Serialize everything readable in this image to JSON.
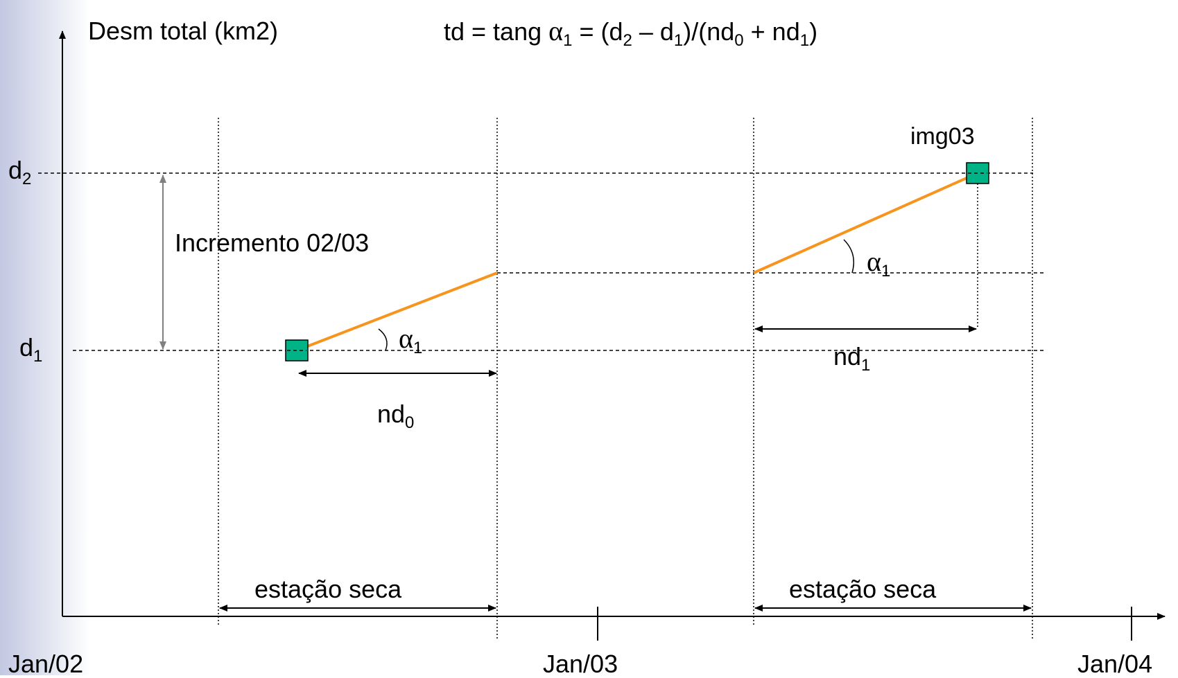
{
  "y_axis_label": "Desm total (km2)",
  "formula": {
    "lhs": "td = tang ",
    "alpha": "α",
    "alpha_sub": "1",
    "eq": " = (d",
    "d2_sub": "2",
    "minus": " – d",
    "d1_sub": "1",
    "mid": ")/(nd",
    "nd0_sub": "0",
    "plus": " + nd",
    "nd1_sub": "1",
    "close": ")"
  },
  "levels": {
    "d2": {
      "base": "d",
      "sub": "2"
    },
    "d1": {
      "base": "d",
      "sub": "1"
    }
  },
  "increment_label": "Incremento 02/03",
  "img_label": "img03",
  "angle_labels": {
    "base": "α",
    "sub": "1"
  },
  "interval_labels": {
    "nd0": {
      "base": "nd",
      "sub": "0"
    },
    "nd1": {
      "base": "nd",
      "sub": "1"
    }
  },
  "season_labels": [
    "estação seca",
    "estação seca"
  ],
  "x_ticks": [
    "Jan/02",
    "Jan/03",
    "Jan/04"
  ],
  "colors": {
    "trend_line": "#f7941d",
    "marker_fill": "#00b386",
    "axis": "#000000",
    "increment_arrow": "#808080",
    "sidebar_gradient": "#c3c8e2"
  }
}
